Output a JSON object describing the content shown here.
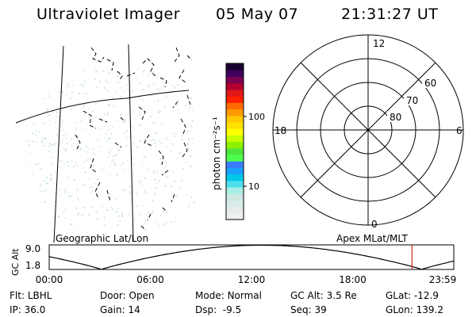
{
  "header": {
    "instrument": "Ultraviolet Imager",
    "date": "05 May 07",
    "time": "21:31:27 UT"
  },
  "map_panel": {
    "caption": "Geographic Lat/Lon"
  },
  "colorbar": {
    "unit_label": "photon cm⁻²s⁻¹",
    "ticks": [
      {
        "value": 100,
        "label": "100"
      },
      {
        "value": 10,
        "label": "10"
      }
    ],
    "colors": [
      "#f0f0f0",
      "#e6ecec",
      "#d7ebe8",
      "#cde8e3",
      "#a8eee4",
      "#4fe0ec",
      "#00c8e8",
      "#1aa0ff",
      "#3c7cff",
      "#4cff4c",
      "#4ee63c",
      "#8ef000",
      "#c8ff00",
      "#ffff00",
      "#ffe000",
      "#ffc800",
      "#ff9a00",
      "#ff6a00",
      "#ff2000",
      "#e01818",
      "#b00030",
      "#7a0050",
      "#400060",
      "#1a0030"
    ]
  },
  "polar_panel": {
    "caption": "Apex MLat/MLT",
    "mlt_labels": {
      "top": "12",
      "right": "6",
      "bottom": "0",
      "left": "18"
    },
    "lat_labels": [
      "60",
      "70",
      "80"
    ]
  },
  "orbit_plot": {
    "ylabel": "GC Alt",
    "yticks": [
      "9.0",
      "1.8"
    ],
    "xticks": [
      "00:00",
      "06:00",
      "12:00",
      "18:00",
      "23:59"
    ],
    "marker_time_hours": 21.52,
    "marker_color": "#cc0000"
  },
  "status": {
    "filter": {
      "label": "Flt:",
      "value": "LBHL"
    },
    "ip": {
      "label": "IP:",
      "value": "36.0"
    },
    "door": {
      "label": "Door:",
      "value": "Open"
    },
    "gain": {
      "label": "Gain:",
      "value": "14"
    },
    "mode": {
      "label": "Mode:",
      "value": "Normal"
    },
    "dsp": {
      "label": "Dsp:",
      "value": "-9.5"
    },
    "gc_alt": {
      "label": "GC Alt:",
      "value": "3.5 Re"
    },
    "seq": {
      "label": "Seq:",
      "value": "39"
    },
    "glat": {
      "label": "GLat:",
      "value": "-12.9"
    },
    "glon": {
      "label": "GLon:",
      "value": "139.2"
    }
  }
}
